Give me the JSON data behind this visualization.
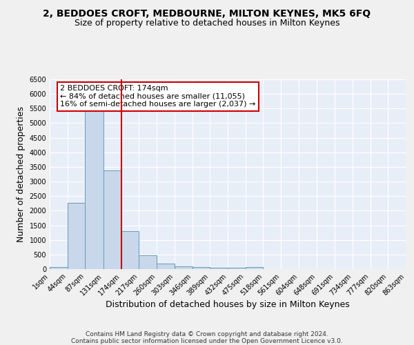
{
  "title": "2, BEDDOES CROFT, MEDBOURNE, MILTON KEYNES, MK5 6FQ",
  "subtitle": "Size of property relative to detached houses in Milton Keynes",
  "xlabel": "Distribution of detached houses by size in Milton Keynes",
  "ylabel": "Number of detached properties",
  "footnote_line1": "Contains HM Land Registry data © Crown copyright and database right 2024.",
  "footnote_line2": "Contains public sector information licensed under the Open Government Licence v3.0.",
  "bin_edges": [
    1,
    44,
    87,
    131,
    174,
    217,
    260,
    303,
    346,
    389,
    432,
    475,
    518,
    561,
    604,
    648,
    691,
    734,
    777,
    820,
    863
  ],
  "bar_heights": [
    80,
    2280,
    5430,
    3380,
    1300,
    480,
    180,
    100,
    80,
    50,
    50,
    80,
    0,
    0,
    0,
    0,
    0,
    0,
    0,
    0
  ],
  "bar_color": "#c8d8ea",
  "bar_edge_color": "#6699bb",
  "red_line_x": 174,
  "annotation_text": "2 BEDDOES CROFT: 174sqm\n← 84% of detached houses are smaller (11,055)\n16% of semi-detached houses are larger (2,037) →",
  "annotation_box_color": "#ffffff",
  "annotation_box_edge_color": "#cc0000",
  "ylim": [
    0,
    6500
  ],
  "yticks": [
    0,
    500,
    1000,
    1500,
    2000,
    2500,
    3000,
    3500,
    4000,
    4500,
    5000,
    5500,
    6000,
    6500
  ],
  "fig_bg_color": "#f0f0f0",
  "ax_bg_color": "#e8eef8",
  "grid_color": "#ffffff",
  "title_fontsize": 10,
  "subtitle_fontsize": 9,
  "label_fontsize": 9,
  "tick_fontsize": 7,
  "annotation_fontsize": 8,
  "footnote_fontsize": 6.5
}
